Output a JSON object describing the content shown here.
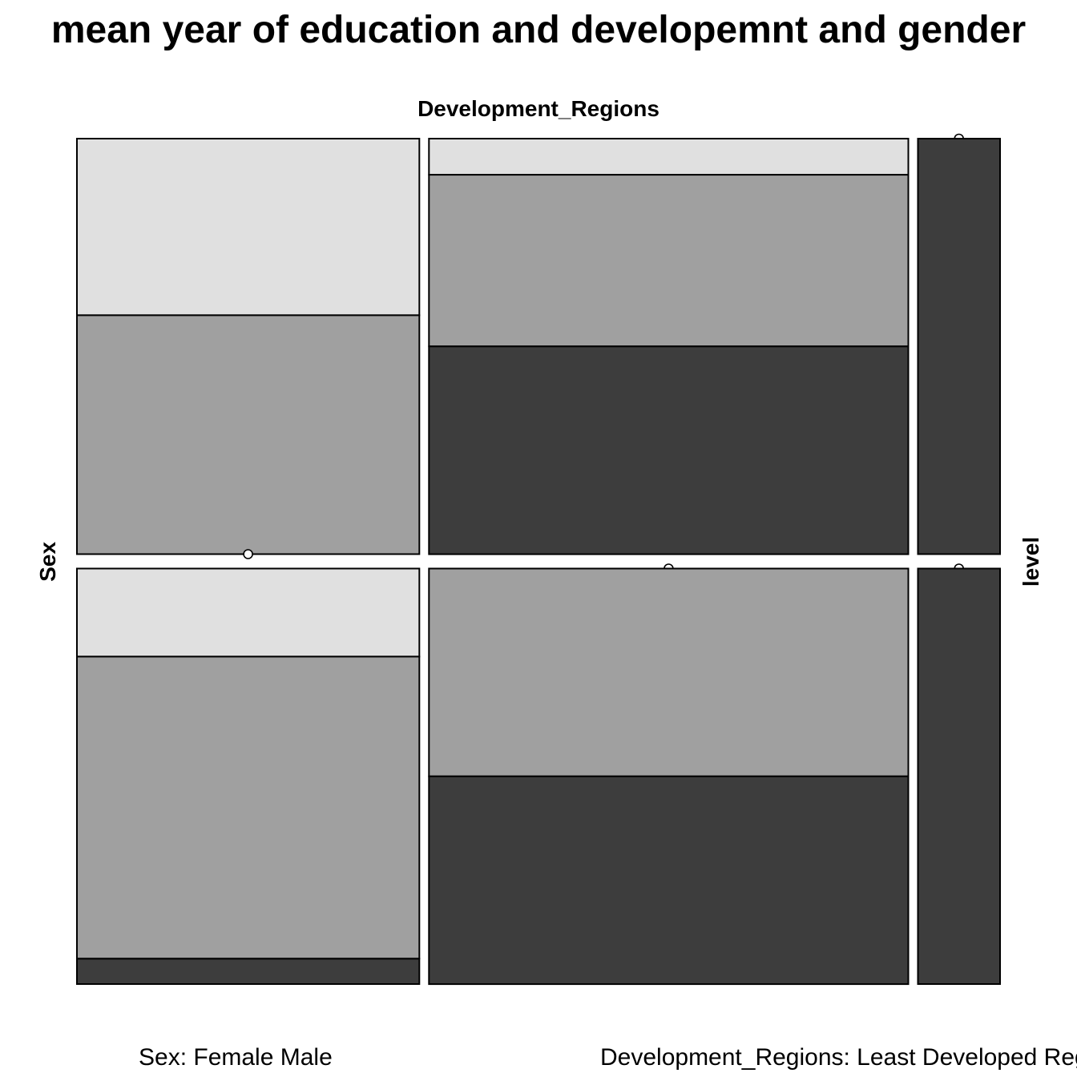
{
  "chart_data": {
    "type": "mosaic",
    "title": "mean year of education and developemnt and gender",
    "top_label": "Development_Regions",
    "left_label": "Sex",
    "right_label": "level",
    "footer_left": "Sex: Female Male",
    "footer_right": "Development_Regions: Least Developed Regions",
    "row_fractions": [
      0.5,
      0.5
    ],
    "column_fractions": [
      0.375,
      0.525,
      0.09
    ],
    "level_colors": [
      "#e0e0e0",
      "#a0a0a0",
      "#3d3d3d"
    ],
    "cells": [
      {
        "row": 0,
        "col": 0,
        "level_fractions": [
          0.425,
          0.575,
          0.0
        ]
      },
      {
        "row": 0,
        "col": 1,
        "level_fractions": [
          0.087,
          0.413,
          0.5
        ]
      },
      {
        "row": 0,
        "col": 2,
        "level_fractions": [
          0.0,
          0.0,
          1.0
        ]
      },
      {
        "row": 1,
        "col": 0,
        "level_fractions": [
          0.212,
          0.727,
          0.061
        ]
      },
      {
        "row": 1,
        "col": 1,
        "level_fractions": [
          0.0,
          0.5,
          0.5
        ]
      },
      {
        "row": 1,
        "col": 2,
        "level_fractions": [
          0.0,
          0.0,
          1.0
        ]
      }
    ]
  }
}
